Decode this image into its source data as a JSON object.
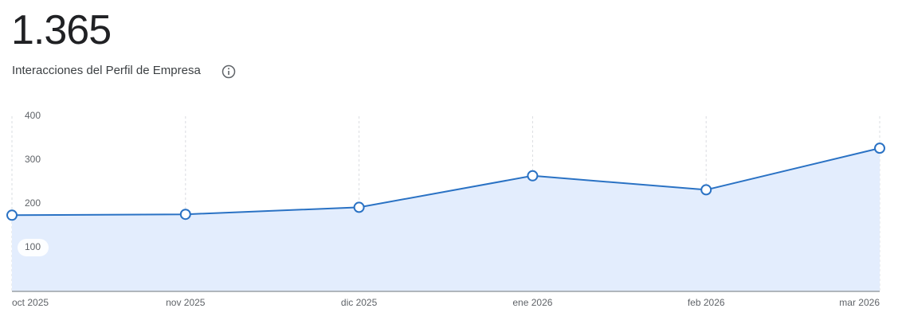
{
  "chart_data": {
    "type": "line",
    "title": "1.365",
    "subtitle": "Interacciones del Perfil de Empresa",
    "categories": [
      "oct 2025",
      "nov 2025",
      "dic 2025",
      "ene 2026",
      "feb 2026",
      "mar 2026"
    ],
    "values": [
      174,
      176,
      192,
      264,
      232,
      327
    ],
    "color": "#2a72c4",
    "fill": "#e3edfd",
    "ylim": [
      0,
      400
    ],
    "yticks": [
      100,
      200,
      300,
      400
    ],
    "grid": true
  }
}
